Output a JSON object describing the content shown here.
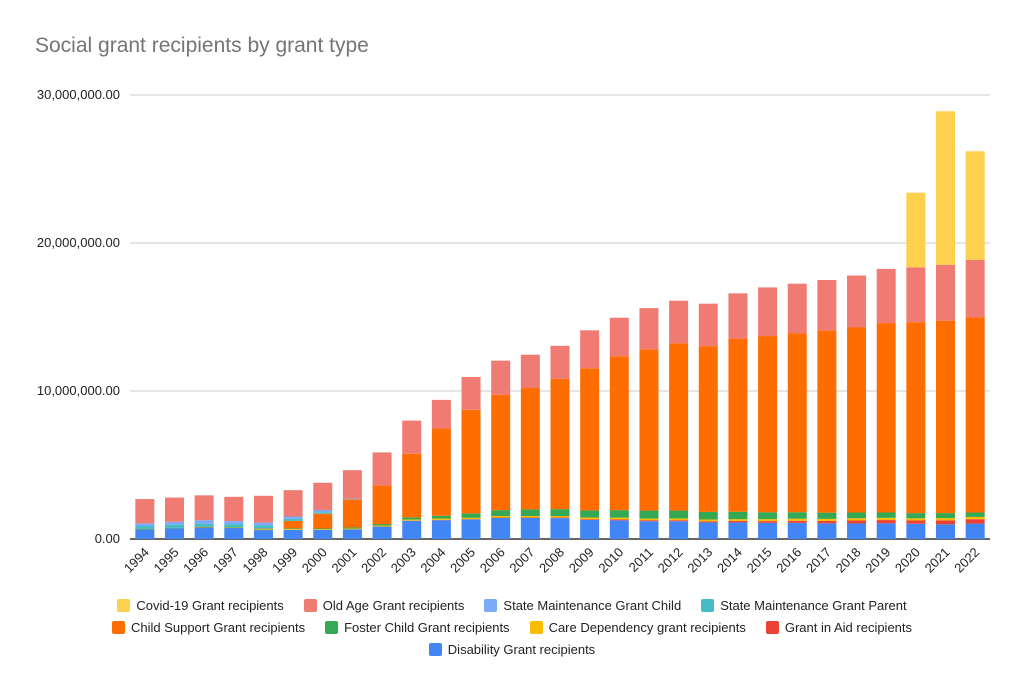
{
  "chart_data": {
    "type": "bar",
    "stacked": true,
    "title": "Social grant recipients by grant type",
    "xlabel": "",
    "ylabel": "",
    "ylim": [
      0,
      30000000
    ],
    "yticks": [
      "0.00",
      "10,000,000.00",
      "20,000,000.00",
      "30,000,000.00"
    ],
    "grid": true,
    "legend_position": "bottom",
    "categories": [
      "1994",
      "1995",
      "1996",
      "1997",
      "1998",
      "1999",
      "2000",
      "2001",
      "2002",
      "2003",
      "2004",
      "2005",
      "2006",
      "2007",
      "2008",
      "2009",
      "2010",
      "2011",
      "2012",
      "2013",
      "2014",
      "2015",
      "2016",
      "2017",
      "2018",
      "2019",
      "2020",
      "2021",
      "2022"
    ],
    "series": [
      {
        "name": "Disability Grant recipients",
        "color": "#4285f4",
        "values": [
          0.63,
          0.71,
          0.74,
          0.74,
          0.6,
          0.61,
          0.61,
          0.65,
          0.84,
          1.23,
          1.27,
          1.32,
          1.42,
          1.42,
          1.41,
          1.29,
          1.26,
          1.2,
          1.2,
          1.12,
          1.12,
          1.09,
          1.09,
          1.06,
          1.05,
          1.06,
          1.03,
          0.99,
          1.04
        ]
      },
      {
        "name": "Grant in Aid recipients",
        "color": "#ea4335",
        "values": [
          0.01,
          0.01,
          0.03,
          0.01,
          0.01,
          0.01,
          0.01,
          0.01,
          0.01,
          0.01,
          0.02,
          0.02,
          0.03,
          0.03,
          0.04,
          0.05,
          0.06,
          0.07,
          0.07,
          0.08,
          0.1,
          0.12,
          0.14,
          0.16,
          0.2,
          0.22,
          0.22,
          0.27,
          0.3
        ]
      },
      {
        "name": "Care Dependency grant recipients",
        "color": "#fbbc04",
        "values": [
          0.0,
          0.0,
          0.01,
          0.02,
          0.04,
          0.05,
          0.04,
          0.05,
          0.06,
          0.08,
          0.09,
          0.09,
          0.1,
          0.1,
          0.1,
          0.11,
          0.12,
          0.11,
          0.12,
          0.12,
          0.12,
          0.13,
          0.14,
          0.14,
          0.15,
          0.15,
          0.15,
          0.15,
          0.15
        ]
      },
      {
        "name": "Foster Child Grant recipients",
        "color": "#34a853",
        "values": [
          0.04,
          0.04,
          0.04,
          0.04,
          0.04,
          0.05,
          0.05,
          0.07,
          0.1,
          0.14,
          0.19,
          0.3,
          0.4,
          0.45,
          0.47,
          0.48,
          0.51,
          0.54,
          0.53,
          0.51,
          0.5,
          0.47,
          0.44,
          0.42,
          0.39,
          0.36,
          0.35,
          0.34,
          0.3
        ]
      },
      {
        "name": "Child Support Grant recipients",
        "color": "#ff6d01",
        "values": [
          0,
          0,
          0,
          0,
          0.02,
          0.5,
          1.0,
          1.9,
          2.6,
          4.3,
          5.9,
          7.0,
          7.8,
          8.2,
          8.8,
          9.6,
          10.4,
          10.9,
          11.3,
          11.2,
          11.7,
          11.9,
          12.1,
          12.3,
          12.5,
          12.8,
          12.9,
          13.0,
          13.2
        ]
      },
      {
        "name": "State Maintenance Grant Parent",
        "color": "#46bdc6",
        "values": [
          0.2,
          0.2,
          0.2,
          0.2,
          0.2,
          0.15,
          0.1,
          0.0,
          0,
          0,
          0,
          0,
          0,
          0,
          0,
          0,
          0,
          0,
          0,
          0,
          0,
          0,
          0,
          0,
          0,
          0,
          0,
          0,
          0
        ]
      },
      {
        "name": "State Maintenance Grant Child",
        "color": "#7baaf7",
        "values": [
          0.18,
          0.2,
          0.25,
          0.2,
          0.2,
          0.15,
          0.15,
          0.05,
          0,
          0,
          0,
          0,
          0,
          0,
          0,
          0,
          0,
          0,
          0,
          0,
          0,
          0,
          0,
          0,
          0,
          0,
          0,
          0,
          0
        ]
      },
      {
        "name": "Old Age Grant recipients",
        "color": "#f07b72",
        "values": [
          1.64,
          1.64,
          1.68,
          1.64,
          1.81,
          1.78,
          1.84,
          1.92,
          2.24,
          2.24,
          1.93,
          2.22,
          2.3,
          2.25,
          2.23,
          2.57,
          2.6,
          2.78,
          2.88,
          2.87,
          3.06,
          3.29,
          3.34,
          3.42,
          3.51,
          3.66,
          3.7,
          3.78,
          3.86
        ]
      },
      {
        "name": "Covid-19 Grant recipients",
        "color": "#fdd04d",
        "values": [
          0,
          0,
          0,
          0,
          0,
          0,
          0,
          0,
          0,
          0,
          0,
          0,
          0,
          0,
          0,
          0,
          0,
          0,
          0,
          0,
          0,
          0,
          0,
          0,
          0,
          0,
          5.05,
          10.37,
          7.35
        ]
      }
    ],
    "value_unit_note": "values in millions of recipients",
    "legend_order": [
      8,
      7,
      6,
      5,
      4,
      3,
      2,
      1,
      0
    ]
  }
}
